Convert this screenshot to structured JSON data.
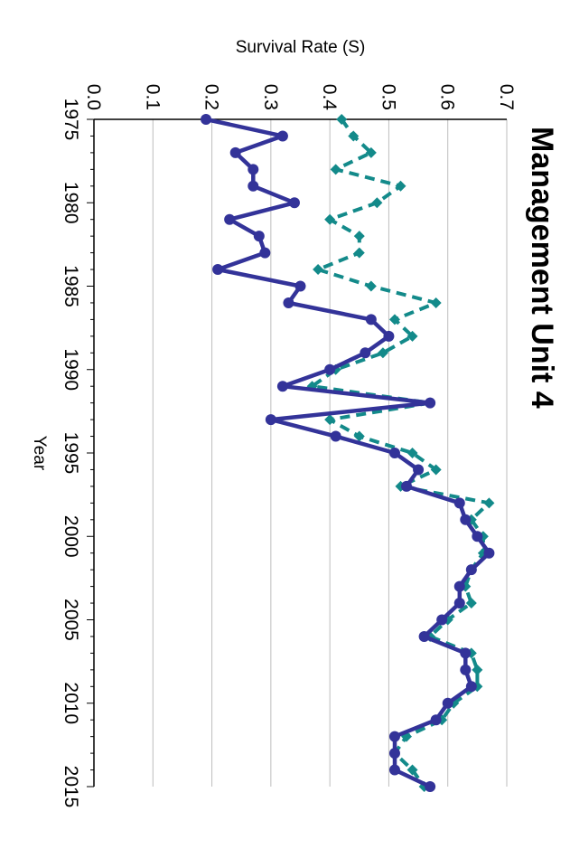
{
  "chart_data": {
    "type": "line",
    "title": "Management Unit 4",
    "xlabel": "Year",
    "ylabel": "Survival Rate (S)",
    "xlim": [
      1975,
      2015
    ],
    "ylim": [
      0.0,
      0.7
    ],
    "x_ticks": [
      "1975",
      "1980",
      "1985",
      "1990",
      "1995",
      "2000",
      "2005",
      "2010",
      "2015"
    ],
    "y_ticks": [
      "0.0",
      "0.1",
      "0.2",
      "0.3",
      "0.4",
      "0.5",
      "0.6",
      "0.7"
    ],
    "grid": true,
    "orientation": "rotated 90 degrees clockwise",
    "colors": {
      "series_1": "#333399",
      "series_2": "#138a8a",
      "grid": "#bdbdbd"
    },
    "series": [
      {
        "style": "solid",
        "color": "#333399",
        "x": [
          1975,
          1976,
          1977,
          1978,
          1979,
          1980,
          1981,
          1982,
          1983,
          1984,
          1985,
          1986,
          1987,
          1988,
          1989,
          1990,
          1991,
          1992,
          1993,
          1994,
          1995,
          1996,
          1997,
          1998,
          1999,
          2000,
          2001,
          2002,
          2003,
          2004,
          2005,
          2006,
          2007,
          2008,
          2009,
          2010,
          2011,
          2012,
          2013,
          2014,
          2015
        ],
        "values": [
          0.19,
          0.32,
          0.24,
          0.27,
          0.27,
          0.34,
          0.23,
          0.28,
          0.29,
          0.21,
          0.35,
          0.33,
          0.47,
          0.5,
          0.46,
          0.4,
          0.32,
          0.57,
          0.3,
          0.41,
          0.51,
          0.55,
          0.53,
          0.62,
          0.63,
          0.65,
          0.67,
          0.64,
          0.62,
          0.62,
          0.59,
          0.56,
          0.63,
          0.63,
          0.64,
          0.6,
          0.58,
          0.51,
          0.51,
          0.51,
          0.57
        ]
      },
      {
        "style": "dashed",
        "color": "#138a8a",
        "x": [
          1975,
          1976,
          1977,
          1978,
          1979,
          1980,
          1981,
          1982,
          1983,
          1984,
          1985,
          1986,
          1987,
          1988,
          1989,
          1990,
          1991,
          1992,
          1993,
          1994,
          1995,
          1996,
          1997,
          1998,
          1999,
          2000,
          2001,
          2002,
          2003,
          2004,
          2005,
          2006,
          2007,
          2008,
          2009,
          2010,
          2011,
          2012,
          2013,
          2014,
          2015
        ],
        "values": [
          0.42,
          0.44,
          0.47,
          0.41,
          0.52,
          0.48,
          0.4,
          0.45,
          0.45,
          0.38,
          0.47,
          0.58,
          0.51,
          0.54,
          0.49,
          0.41,
          0.37,
          0.57,
          0.4,
          0.45,
          0.54,
          0.58,
          0.52,
          0.67,
          0.64,
          0.66,
          0.66,
          0.64,
          0.63,
          0.64,
          0.6,
          0.57,
          0.64,
          0.65,
          0.65,
          0.61,
          0.59,
          0.53,
          0.51,
          0.54,
          0.56
        ]
      }
    ]
  }
}
